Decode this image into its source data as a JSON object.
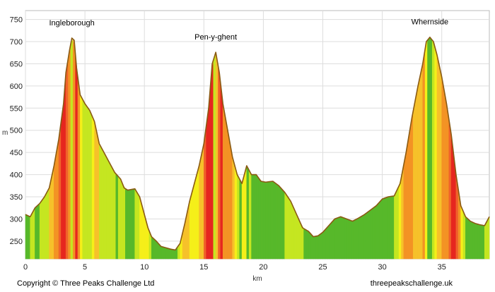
{
  "chart_data": {
    "type": "area",
    "xlabel": "km",
    "ylabel": "m",
    "xlim": [
      0,
      39
    ],
    "ylim": [
      210,
      770
    ],
    "x_ticks": [
      0,
      5,
      10,
      15,
      20,
      25,
      30,
      35
    ],
    "y_ticks": [
      250,
      300,
      350,
      400,
      450,
      500,
      550,
      600,
      650,
      700,
      750
    ],
    "grid": true,
    "peaks": [
      {
        "name": "Ingleborough",
        "x": 3.9,
        "y": 708
      },
      {
        "name": "Pen-y-ghent",
        "x": 16.0,
        "y": 676
      },
      {
        "name": "Whernside",
        "x": 34.0,
        "y": 710
      }
    ],
    "profile": [
      [
        0,
        310
      ],
      [
        0.4,
        305
      ],
      [
        0.8,
        325
      ],
      [
        1.2,
        335
      ],
      [
        1.6,
        350
      ],
      [
        2.0,
        370
      ],
      [
        2.4,
        420
      ],
      [
        2.8,
        480
      ],
      [
        3.2,
        560
      ],
      [
        3.4,
        630
      ],
      [
        3.7,
        680
      ],
      [
        3.9,
        708
      ],
      [
        4.1,
        703
      ],
      [
        4.3,
        640
      ],
      [
        4.6,
        580
      ],
      [
        5.0,
        560
      ],
      [
        5.4,
        545
      ],
      [
        5.8,
        520
      ],
      [
        6.2,
        470
      ],
      [
        6.6,
        450
      ],
      [
        7.0,
        430
      ],
      [
        7.5,
        405
      ],
      [
        8.0,
        390
      ],
      [
        8.3,
        370
      ],
      [
        8.6,
        365
      ],
      [
        9.2,
        368
      ],
      [
        9.6,
        350
      ],
      [
        9.9,
        320
      ],
      [
        10.3,
        280
      ],
      [
        10.6,
        260
      ],
      [
        11.0,
        250
      ],
      [
        11.4,
        238
      ],
      [
        11.8,
        235
      ],
      [
        12.2,
        232
      ],
      [
        12.6,
        230
      ],
      [
        13.0,
        245
      ],
      [
        13.4,
        290
      ],
      [
        13.8,
        340
      ],
      [
        14.2,
        380
      ],
      [
        14.6,
        420
      ],
      [
        15.0,
        470
      ],
      [
        15.4,
        550
      ],
      [
        15.7,
        650
      ],
      [
        16.0,
        676
      ],
      [
        16.3,
        630
      ],
      [
        16.6,
        560
      ],
      [
        17.0,
        500
      ],
      [
        17.4,
        440
      ],
      [
        17.8,
        400
      ],
      [
        18.2,
        380
      ],
      [
        18.6,
        420
      ],
      [
        19.0,
        400
      ],
      [
        19.4,
        400
      ],
      [
        19.8,
        385
      ],
      [
        20.2,
        383
      ],
      [
        20.8,
        385
      ],
      [
        21.3,
        375
      ],
      [
        21.8,
        360
      ],
      [
        22.3,
        340
      ],
      [
        22.8,
        310
      ],
      [
        23.3,
        280
      ],
      [
        23.8,
        272
      ],
      [
        24.2,
        260
      ],
      [
        24.6,
        262
      ],
      [
        25.0,
        270
      ],
      [
        25.5,
        285
      ],
      [
        26.0,
        300
      ],
      [
        26.5,
        305
      ],
      [
        27.0,
        300
      ],
      [
        27.5,
        295
      ],
      [
        28.0,
        302
      ],
      [
        28.5,
        310
      ],
      [
        29.0,
        320
      ],
      [
        29.5,
        330
      ],
      [
        30.0,
        345
      ],
      [
        30.5,
        350
      ],
      [
        31.0,
        352
      ],
      [
        31.5,
        380
      ],
      [
        32.0,
        450
      ],
      [
        32.5,
        530
      ],
      [
        33.0,
        600
      ],
      [
        33.4,
        650
      ],
      [
        33.7,
        700
      ],
      [
        34.0,
        710
      ],
      [
        34.3,
        700
      ],
      [
        34.6,
        670
      ],
      [
        35.0,
        620
      ],
      [
        35.4,
        560
      ],
      [
        35.8,
        490
      ],
      [
        36.2,
        400
      ],
      [
        36.6,
        330
      ],
      [
        37.0,
        305
      ],
      [
        37.4,
        295
      ],
      [
        37.8,
        290
      ],
      [
        38.2,
        287
      ],
      [
        38.6,
        285
      ],
      [
        39.0,
        305
      ]
    ],
    "gradient_colors": [
      "#57b82a",
      "#c5e621",
      "#f5ef19",
      "#f6c12a",
      "#f39324",
      "#f0632a",
      "#e6261f"
    ]
  },
  "footer": {
    "copyright": "Copyright © Three Peaks Challenge Ltd",
    "site": "threepeakschallenge.uk"
  }
}
